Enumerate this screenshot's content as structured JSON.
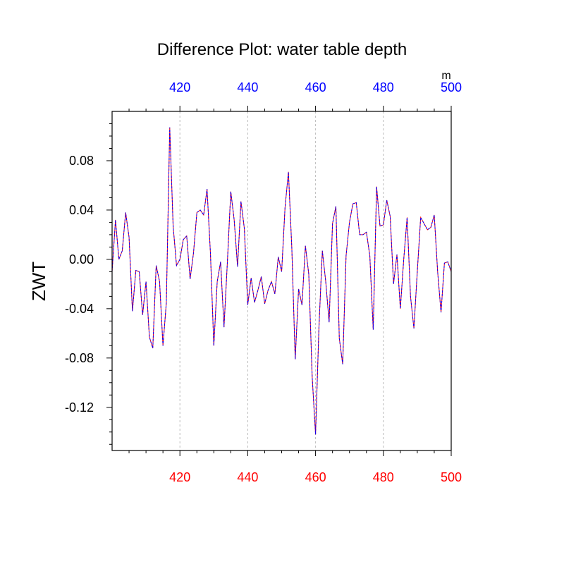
{
  "chart_data": {
    "type": "line",
    "title": "Difference Plot: water table depth",
    "ylabel": "ZWT",
    "top_axis_unit": "m",
    "xlim": [
      400,
      500
    ],
    "ylim": [
      -0.155,
      0.12
    ],
    "grid": "vertical dotted at major ticks",
    "bottom_ticks": [
      "420",
      "440",
      "460",
      "480",
      "500"
    ],
    "top_ticks": [
      "420",
      "440",
      "460",
      "480",
      "500"
    ],
    "y_ticks": [
      "0.08",
      "0.04",
      "0.00",
      "-0.04",
      "-0.08",
      "-0.12"
    ],
    "y_tick_values": [
      0.08,
      0.04,
      0.0,
      -0.04,
      -0.08,
      -0.12
    ],
    "x_tick_values": [
      420,
      440,
      460,
      480,
      500
    ],
    "colors": {
      "bottom_ticks": "#ff0000",
      "top_ticks": "#0000ff",
      "line_primary": "#ff0000",
      "line_overlay": "#0000ff",
      "grid": "#bbbbbb",
      "axes": "#000000"
    },
    "series": [
      {
        "x": [
          400,
          401,
          402,
          403,
          404,
          405,
          406,
          407,
          408,
          409,
          410,
          411,
          412,
          413,
          414,
          415,
          416,
          417,
          418,
          419,
          420,
          421,
          422,
          423,
          424,
          425,
          426,
          427,
          428,
          429,
          430,
          431,
          432,
          433,
          434,
          435,
          436,
          437,
          438,
          439,
          440,
          441,
          442,
          443,
          444,
          445,
          446,
          447,
          448,
          449,
          450,
          451,
          452,
          453,
          454,
          455,
          456,
          457,
          458,
          459,
          460,
          461,
          462,
          463,
          464,
          465,
          466,
          467,
          468,
          469,
          470,
          471,
          472,
          473,
          474,
          475,
          476,
          477,
          478,
          479,
          480,
          481,
          482,
          483,
          484,
          485,
          486,
          487,
          488,
          489,
          490,
          491,
          492,
          493,
          494,
          495,
          496,
          497,
          498,
          499,
          500
        ],
        "values": [
          -0.01,
          0.032,
          0.0,
          0.007,
          0.038,
          0.018,
          -0.042,
          -0.009,
          -0.01,
          -0.045,
          -0.018,
          -0.063,
          -0.072,
          -0.005,
          -0.018,
          -0.07,
          -0.035,
          0.107,
          0.027,
          -0.005,
          0.0,
          0.016,
          0.019,
          -0.016,
          0.005,
          0.038,
          0.04,
          0.036,
          0.057,
          0.005,
          -0.07,
          -0.018,
          -0.002,
          -0.055,
          -0.002,
          0.055,
          0.032,
          -0.006,
          0.047,
          0.025,
          -0.037,
          -0.015,
          -0.035,
          -0.025,
          -0.014,
          -0.036,
          -0.025,
          -0.018,
          -0.028,
          0.002,
          -0.01,
          0.042,
          0.071,
          0.009,
          -0.081,
          -0.024,
          -0.037,
          0.011,
          -0.012,
          -0.095,
          -0.142,
          -0.055,
          0.007,
          -0.018,
          -0.051,
          0.029,
          0.043,
          -0.064,
          -0.085,
          0.003,
          0.03,
          0.045,
          0.046,
          0.02,
          0.02,
          0.022,
          0.003,
          -0.057,
          0.059,
          0.027,
          0.028,
          0.048,
          0.035,
          -0.02,
          0.004,
          -0.04,
          0.0,
          0.034,
          -0.03,
          -0.056,
          -0.01,
          0.034,
          0.029,
          0.024,
          0.026,
          0.036,
          -0.01,
          -0.043,
          -0.003,
          -0.002,
          -0.01
        ]
      }
    ]
  }
}
